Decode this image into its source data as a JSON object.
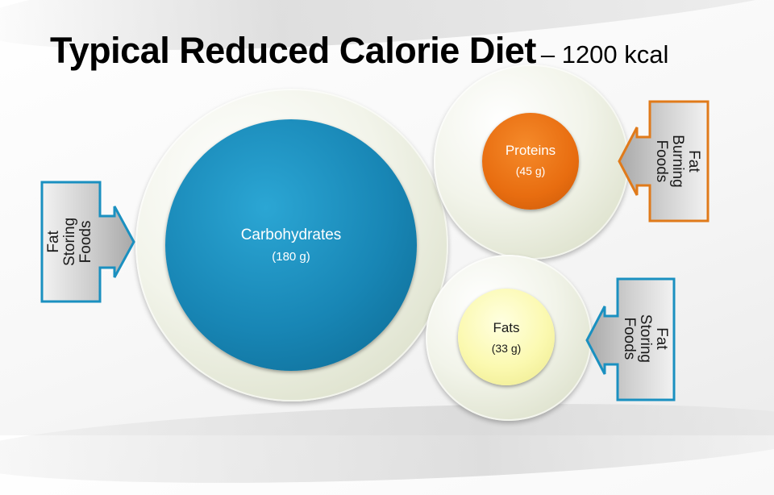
{
  "title": {
    "main": "Typical Reduced Calorie Diet",
    "sub": "– 1200 kcal"
  },
  "nutrients": {
    "carbohydrates": {
      "name": "Carbohydrates",
      "amount": "(180 g)",
      "color": "#1886b5"
    },
    "proteins": {
      "name": "Proteins",
      "amount": "(45 g)",
      "color": "#e86d10"
    },
    "fats": {
      "name": "Fats",
      "amount": "(33 g)",
      "color": "#fbf9b0"
    }
  },
  "callouts": {
    "carbohydrates": {
      "label": "Fat Storing\nFoods",
      "color": "#1a90c0"
    },
    "proteins": {
      "label": "Fat Burning\nFoods",
      "color": "#e07a1a"
    },
    "fats": {
      "label": "Fat Storing\nFoods",
      "color": "#1a90c0"
    }
  }
}
